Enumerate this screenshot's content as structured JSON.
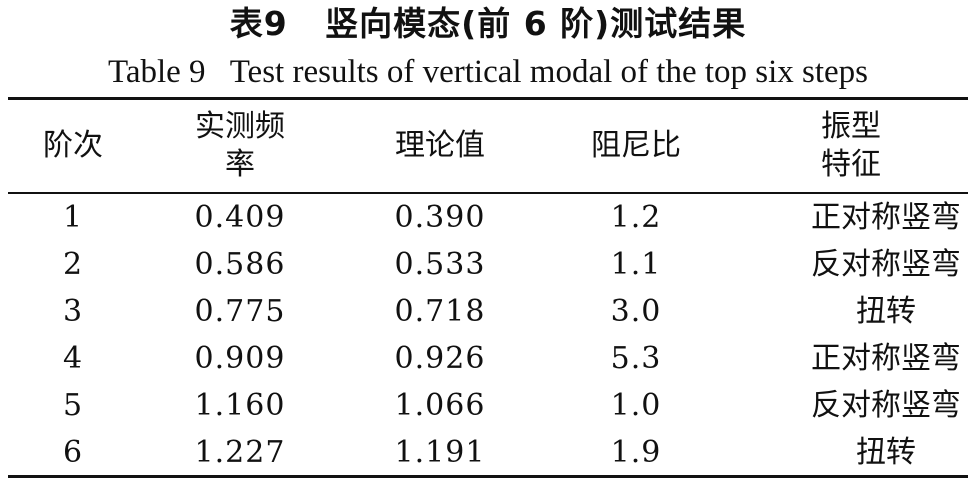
{
  "caption": {
    "title_cn": "表9   竖向模态(前 6 阶)测试结果",
    "title_en": "Table 9   Test results of vertical modal of the top six steps"
  },
  "table": {
    "headers": [
      "阶次",
      "实测频率",
      "理论值",
      "阻尼比",
      "振型特征"
    ],
    "rows": [
      [
        "1",
        "0.409",
        "0.390",
        "1.2",
        "正对称竖弯"
      ],
      [
        "2",
        "0.586",
        "0.533",
        "1.1",
        "反对称竖弯"
      ],
      [
        "3",
        "0.775",
        "0.718",
        "3.0",
        "扭转"
      ],
      [
        "4",
        "0.909",
        "0.926",
        "5.3",
        "正对称竖弯"
      ],
      [
        "5",
        "1.160",
        "1.066",
        "1.0",
        "反对称竖弯"
      ],
      [
        "6",
        "1.227",
        "1.191",
        "1.9",
        "扭转"
      ]
    ]
  }
}
